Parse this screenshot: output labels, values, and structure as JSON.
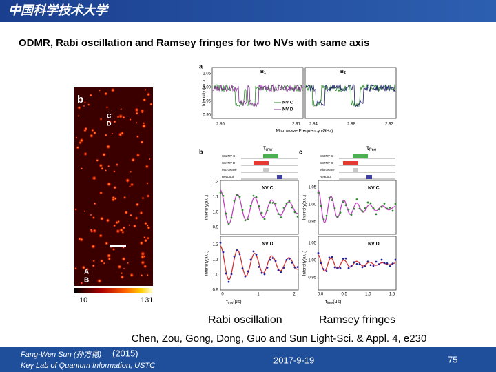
{
  "header": {
    "logo": "中国科学技术大学"
  },
  "title": "ODMR, Rabi oscillation and Ramsey fringes for two NVs with same axis",
  "figure": {
    "panel_a": {
      "label": "a",
      "b1": "B",
      "b1_sub": "1",
      "b2": "B",
      "b2_sub": "2",
      "yticks": [
        "1.05",
        "1.00",
        "0.95",
        "0.90"
      ],
      "xticks_left": [
        "2.86",
        "2.91"
      ],
      "xticks_right": [
        "2.84",
        "2.88",
        "2.92"
      ],
      "xlabel": "Microwave Frequency (GHz)",
      "ylabel": "Intensity (a.u.)",
      "legend": [
        "NV C",
        "NV D"
      ]
    },
    "image": {
      "label": "b",
      "top_labels": [
        "C",
        "D"
      ],
      "bottom_labels": [
        "A",
        "B"
      ],
      "colorbar": [
        "10",
        "131"
      ]
    },
    "panel_b": {
      "label": "b",
      "tau": "τ",
      "tau_sub": "mw",
      "sequence": [
        "SS2NV C",
        "SS7NV D",
        "Microwave",
        "Readout"
      ],
      "plots": [
        "NV C",
        "NV D"
      ],
      "yticks": [
        "1.2",
        "1.1",
        "1.0",
        "0.9"
      ],
      "xticks": [
        "0",
        "1",
        "2"
      ],
      "xlabel": "τ",
      "xlabel_sub": "mw",
      "xlabel_unit": "(μs)",
      "ylabel": "Intensity(a.u.)"
    },
    "panel_c": {
      "label": "c",
      "tau": "τ",
      "tau_sub": "free",
      "sequence": [
        "SS2NV C",
        "SS7NV D",
        "Microwave",
        "Readout"
      ],
      "plots": [
        "NV C",
        "NV D"
      ],
      "yticks": [
        "1.05",
        "1.00",
        "0.95"
      ],
      "xticks": [
        "0.0",
        "0.5",
        "1.0",
        "1.5"
      ],
      "xlabel": "τ",
      "xlabel_sub": "free",
      "xlabel_unit": "(μs)",
      "ylabel": "Intensity(a.u.)"
    }
  },
  "captions": [
    "Rabi oscillation",
    "Ramsey fringes"
  ],
  "citation": "Chen, Zou, Gong, Dong, Guo and Sun Light-Sci. & Appl. 4, e230",
  "footer": {
    "author": "Fang-Wen Sun (孙方稳)",
    "year": "(2015)",
    "affiliation": "Key Lab of Quantum Information, USTC",
    "date": "2017-9-19",
    "page": "75"
  }
}
